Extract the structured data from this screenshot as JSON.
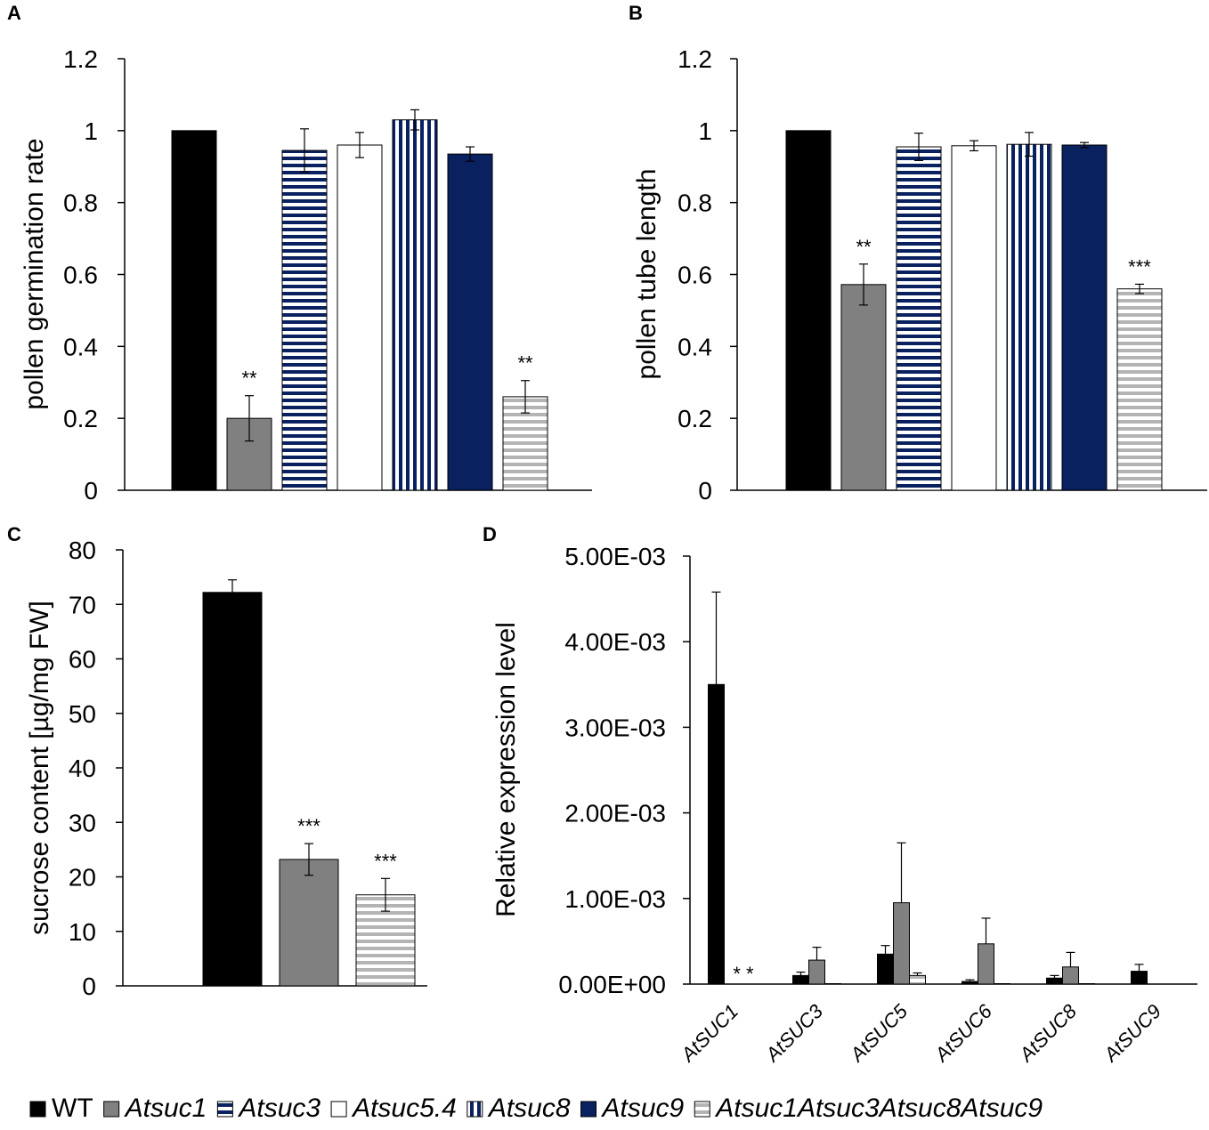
{
  "legend": [
    {
      "key": "wt",
      "label": "WT",
      "italic": false
    },
    {
      "key": "suc1",
      "label": "Atsuc1",
      "italic": true
    },
    {
      "key": "suc3",
      "label": "Atsuc3",
      "italic": true
    },
    {
      "key": "suc54",
      "label": "Atsuc5.4",
      "italic": true
    },
    {
      "key": "suc8",
      "label": "Atsuc8",
      "italic": true
    },
    {
      "key": "suc9",
      "label": "Atsuc9",
      "italic": true
    },
    {
      "key": "quad",
      "label": "Atsuc1Atsuc3Atsuc8Atsuc9",
      "italic": true
    }
  ],
  "colors": {
    "black": "#000000",
    "gray": "#808080",
    "navy": "#0a2160",
    "white": "#ffffff",
    "stripe_gray": "#b4b4b4"
  },
  "chart_data": [
    {
      "panel": "A",
      "type": "bar",
      "ylabel": "pollen germination rate",
      "ylim": [
        0,
        1.2
      ],
      "yticks": [
        "0",
        "0.2",
        "0.4",
        "0.6",
        "0.8",
        "1",
        "1.2"
      ],
      "categories": [
        "wt",
        "suc1",
        "suc3",
        "suc54",
        "suc8",
        "suc9",
        "quad"
      ],
      "values": [
        1.0,
        0.2,
        0.945,
        0.96,
        1.03,
        0.935,
        0.26
      ],
      "errors": [
        0,
        0.063,
        0.06,
        0.035,
        0.028,
        0.02,
        0.045
      ],
      "significance": [
        "",
        "**",
        "",
        "",
        "",
        "",
        "**"
      ]
    },
    {
      "panel": "B",
      "type": "bar",
      "ylabel": "pollen tube length",
      "ylim": [
        0,
        1.2
      ],
      "yticks": [
        "0",
        "0.2",
        "0.4",
        "0.6",
        "0.8",
        "1",
        "1.2"
      ],
      "categories": [
        "wt",
        "suc1",
        "suc3",
        "suc54",
        "suc8",
        "suc9",
        "quad"
      ],
      "values": [
        1.0,
        0.572,
        0.955,
        0.958,
        0.962,
        0.96,
        0.56
      ],
      "errors": [
        0,
        0.057,
        0.038,
        0.014,
        0.033,
        0.007,
        0.013
      ],
      "significance": [
        "",
        "**",
        "",
        "",
        "",
        "",
        "***"
      ]
    },
    {
      "panel": "C",
      "type": "bar",
      "ylabel": "sucrose content [µg/mg FW]",
      "ylim": [
        0,
        80
      ],
      "yticks": [
        "0",
        "10",
        "20",
        "30",
        "40",
        "50",
        "60",
        "70",
        "80"
      ],
      "categories": [
        "wt",
        "suc1",
        "quad"
      ],
      "values": [
        72.2,
        23.2,
        16.7
      ],
      "errors": [
        2.3,
        2.9,
        3.0
      ],
      "significance": [
        "",
        "***",
        "***"
      ]
    },
    {
      "panel": "D",
      "type": "bar",
      "ylabel": "Relative expression level",
      "ylim": [
        0,
        0.005
      ],
      "yticks": [
        "0.00E+00",
        "1.00E-03",
        "2.00E-03",
        "3.00E-03",
        "4.00E-03",
        "5.00E-03"
      ],
      "categories": [
        "AtSUC1",
        "AtSUC3",
        "AtSUC5",
        "AtSUC6",
        "AtSUC8",
        "AtSUC9"
      ],
      "series": [
        {
          "name": "WT",
          "key": "wt",
          "values": [
            0.0035,
            0.0001,
            0.00035,
            3e-05,
            7e-05,
            0.00015
          ],
          "errors": [
            0.00108,
            4e-05,
            0.0001,
            2e-05,
            3e-05,
            8e-05
          ]
        },
        {
          "name": "Atsuc1",
          "key": "suc1",
          "values": [
            0,
            0.00028,
            0.00095,
            0.00047,
            0.0002,
            0
          ],
          "errors": [
            0,
            0.00015,
            0.0007,
            0.0003,
            0.00017,
            0
          ]
        },
        {
          "name": "Atsuc1Atsuc3Atsuc8Atsuc9",
          "key": "quad",
          "values": [
            0,
            5e-06,
            0.0001,
            5e-06,
            5e-06,
            0
          ],
          "errors": [
            0,
            0,
            3e-05,
            0,
            0,
            0
          ]
        }
      ],
      "annotation": "* *"
    }
  ]
}
